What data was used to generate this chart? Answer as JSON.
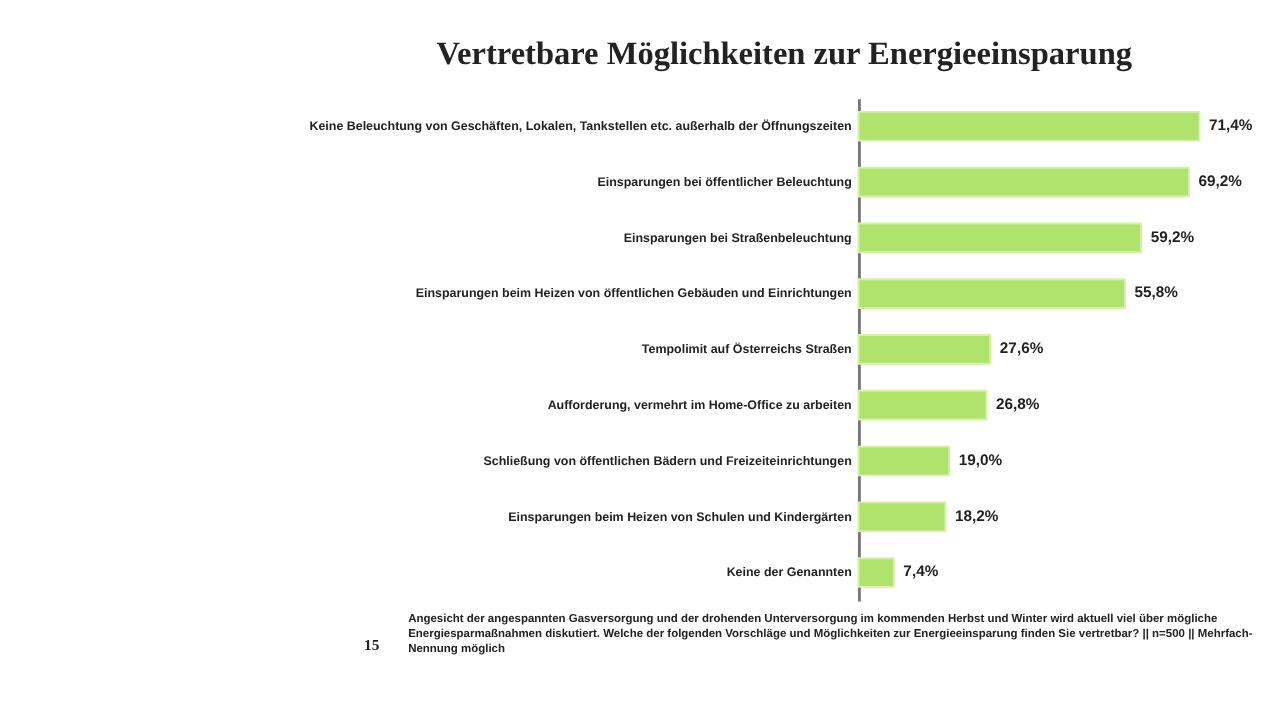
{
  "chart_data": {
    "type": "bar",
    "orientation": "horizontal",
    "title": "Vertretbare Möglichkeiten zur Energieeinsparung",
    "categories": [
      "Keine Beleuchtung von Geschäften, Lokalen, Tankstellen etc. außerhalb der Öffnungszeiten",
      "Einsparungen bei öffentlicher Beleuchtung",
      "Einsparungen bei Straßenbeleuchtung",
      "Einsparungen beim Heizen von öffentlichen Gebäuden und Einrichtungen",
      "Tempolimit auf Österreichs Straßen",
      "Aufforderung, vermehrt im Home-Office zu arbeiten",
      "Schließung von öffentlichen Bädern und Freizeiteinrichtungen",
      "Einsparungen beim Heizen von Schulen und Kindergärten",
      "Keine der Genannten"
    ],
    "values": [
      71.4,
      69.2,
      59.2,
      55.8,
      27.6,
      26.8,
      19.0,
      18.2,
      7.4
    ],
    "value_labels": [
      "71,4%",
      "69,2%",
      "59,2%",
      "55,8%",
      "27,6%",
      "26,8%",
      "19,0%",
      "18,2%",
      "7,4%"
    ],
    "color": "#b0e36b",
    "annotations": [
      "Angesicht der angespannten Gasversorgung und der drohenden Unterversorgung im kommenden Herbst und Winter wird aktuell viel über mögliche Energiesparmaßnahmen diskutiert. Welche der folgenden Vorschläge und Möglichkeiten zur Energieeinsparung finden Sie vertretbar? || n=500 || Mehrfach-Nennung möglich",
      "15"
    ],
    "data_labels": false
  }
}
